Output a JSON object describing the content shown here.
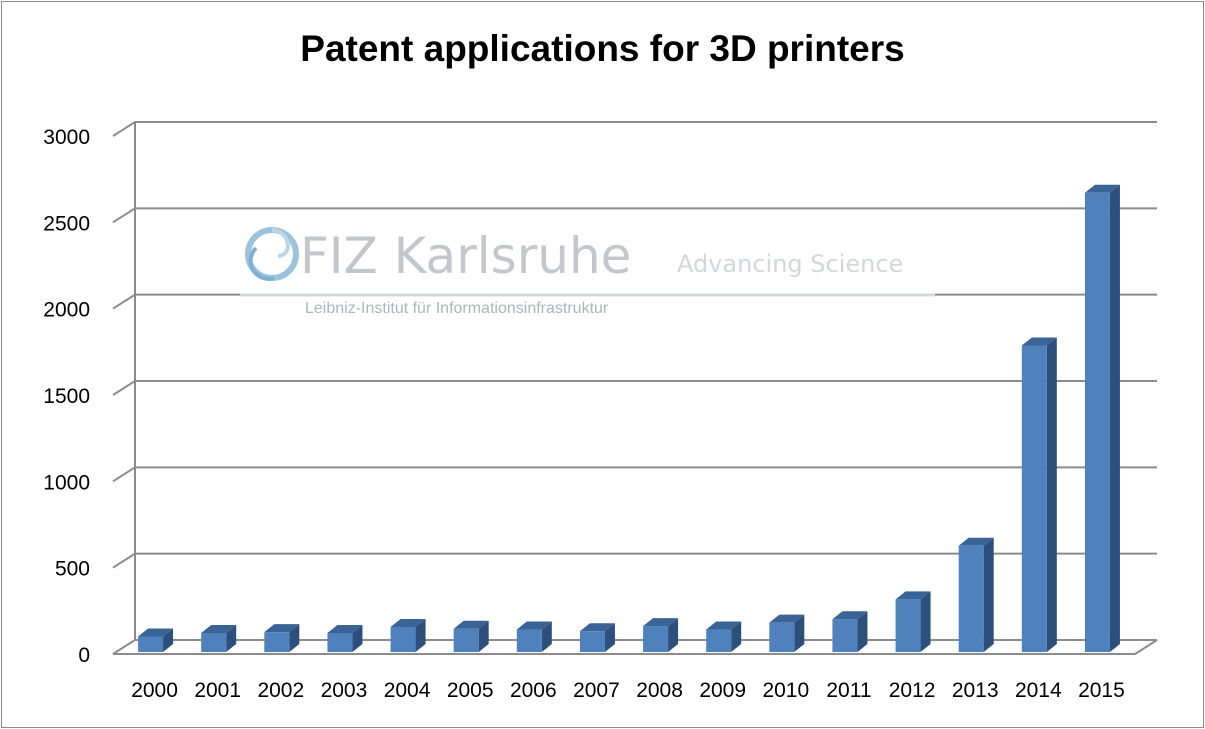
{
  "chart_data": {
    "type": "bar",
    "title": "Patent applications for 3D printers",
    "categories": [
      "2000",
      "2001",
      "2002",
      "2003",
      "2004",
      "2005",
      "2006",
      "2007",
      "2008",
      "2009",
      "2010",
      "2011",
      "2012",
      "2013",
      "2014",
      "2015"
    ],
    "values": [
      90,
      110,
      115,
      110,
      145,
      135,
      130,
      120,
      150,
      130,
      170,
      190,
      305,
      615,
      1775,
      2660
    ],
    "yticks": [
      "0",
      "500",
      "1000",
      "1500",
      "2000",
      "2500",
      "3000"
    ],
    "ylim": [
      0,
      3000
    ],
    "xlabel": "",
    "ylabel": "",
    "grid": true,
    "legend": "none",
    "colors": {
      "bar_front": "#4f81bd",
      "bar_side": "#2c4f7c",
      "bar_top": "#3b6496",
      "grid": "#8c8c8c"
    }
  },
  "watermark": {
    "name": "FIZ Karlsruhe",
    "subtitle": "Leibniz-Institut für Informationsinfrastruktur",
    "tagline": "Advancing Science"
  }
}
